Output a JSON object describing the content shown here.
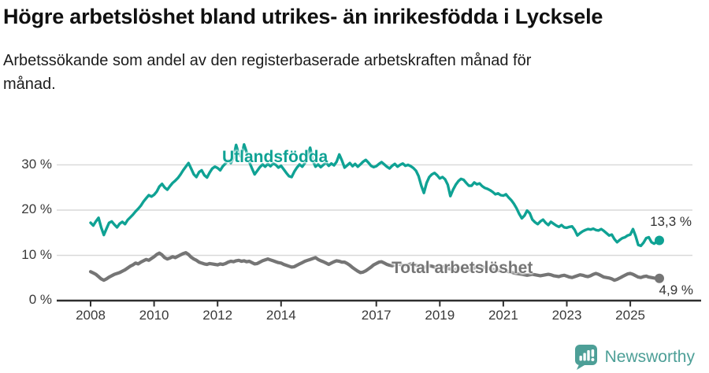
{
  "header": {
    "title": "Högre arbetslöshet bland utrikes- än inrikesfödda i Lycksele",
    "subtitle": "Arbetssökande som andel av den registerbaserade arbetskraften månad för månad."
  },
  "footer": {
    "brand": "Newsworthy"
  },
  "colors": {
    "foreign": "#0fa294",
    "total": "#757575",
    "grid": "#d9d9d9",
    "axis": "#2e2e2e",
    "tick_text": "#3a3a3a",
    "logo": "#4d9f97"
  },
  "chart_data": {
    "type": "line",
    "title": "Högre arbetslöshet bland utrikes- än inrikesfödda i Lycksele",
    "subtitle": "Arbetssökande som andel av den registerbaserade arbetskraften månad för månad.",
    "x_unit": "monthly, decimal years",
    "x_start": 2008,
    "x_step_months": 1,
    "xlim": [
      2008,
      2026
    ],
    "ylim": [
      0,
      36
    ],
    "grid": "horizontal",
    "legend_position": "inline-labels",
    "y_ticks": [
      {
        "value": 0,
        "label": "0 %"
      },
      {
        "value": 10,
        "label": "10 %"
      },
      {
        "value": 20,
        "label": "20 %"
      },
      {
        "value": 30,
        "label": "30 %"
      }
    ],
    "x_ticks": [
      {
        "value": 2008,
        "label": "2008"
      },
      {
        "value": 2010,
        "label": "2010"
      },
      {
        "value": 2012,
        "label": "2012"
      },
      {
        "value": 2014,
        "label": "2014"
      },
      {
        "value": 2017,
        "label": "2017"
      },
      {
        "value": 2019,
        "label": "2019"
      },
      {
        "value": 2021,
        "label": "2021"
      },
      {
        "value": 2023,
        "label": "2023"
      },
      {
        "value": 2025,
        "label": "2025"
      }
    ],
    "series": [
      {
        "name": "Utlandsfödda",
        "color": "#0fa294",
        "stroke_width": 3.4,
        "end_label": "13,3 %",
        "last_value": 13.3,
        "values": [
          17.2,
          16.6,
          17.5,
          18.3,
          16.2,
          14.5,
          15.9,
          17.2,
          17.5,
          16.8,
          16.2,
          17.0,
          17.4,
          16.9,
          17.8,
          18.4,
          19.0,
          19.7,
          20.3,
          21.0,
          21.9,
          22.6,
          23.3,
          23.0,
          23.4,
          24.1,
          25.2,
          25.8,
          25.0,
          24.5,
          25.3,
          26.0,
          26.5,
          27.1,
          27.9,
          28.8,
          29.6,
          30.4,
          29.2,
          27.9,
          27.3,
          28.4,
          28.8,
          27.7,
          27.2,
          28.3,
          29.2,
          29.6,
          29.3,
          28.8,
          29.7,
          30.3,
          31.0,
          30.4,
          31.6,
          34.4,
          32.4,
          31.7,
          34.5,
          32.8,
          30.6,
          29.2,
          27.9,
          28.7,
          29.5,
          30.1,
          29.6,
          30.2,
          29.7,
          30.3,
          30.0,
          29.4,
          29.8,
          29.0,
          28.2,
          27.5,
          27.3,
          28.5,
          29.4,
          30.1,
          29.6,
          30.4,
          32.1,
          33.8,
          30.9,
          29.6,
          30.1,
          29.5,
          30.0,
          30.5,
          29.8,
          30.3,
          29.9,
          30.7,
          32.3,
          31.0,
          29.4,
          29.9,
          30.4,
          29.7,
          30.2,
          29.6,
          30.1,
          30.7,
          31.1,
          30.5,
          29.8,
          29.5,
          29.7,
          30.2,
          30.6,
          30.1,
          29.6,
          29.2,
          29.8,
          30.2,
          29.6,
          30.0,
          30.3,
          29.8,
          30.0,
          29.7,
          29.3,
          28.7,
          27.5,
          25.4,
          23.8,
          26.0,
          27.3,
          27.9,
          28.2,
          27.7,
          27.0,
          27.3,
          26.8,
          25.6,
          23.1,
          24.5,
          25.6,
          26.4,
          26.9,
          26.7,
          26.0,
          25.4,
          25.4,
          26.1,
          25.7,
          25.9,
          25.3,
          24.9,
          24.7,
          24.4,
          24.0,
          23.5,
          23.7,
          23.3,
          23.2,
          23.5,
          22.8,
          22.2,
          21.4,
          20.4,
          19.2,
          18.2,
          18.8,
          19.9,
          19.3,
          17.9,
          17.3,
          16.9,
          17.5,
          17.9,
          17.2,
          16.7,
          17.4,
          17.0,
          16.6,
          16.3,
          16.7,
          16.2,
          16.1,
          16.3,
          16.4,
          15.6,
          14.4,
          14.9,
          15.3,
          15.6,
          15.8,
          15.7,
          15.9,
          15.6,
          15.5,
          15.8,
          15.4,
          14.9,
          14.4,
          14.6,
          13.6,
          12.9,
          13.4,
          13.8,
          14.0,
          14.4,
          14.6,
          15.8,
          14.3,
          12.3,
          12.1,
          12.8,
          13.8,
          14.0,
          12.9,
          12.6,
          13.0,
          13.3
        ]
      },
      {
        "name": "Total arbetslöshet",
        "color": "#757575",
        "stroke_width": 4.2,
        "end_label": "4,9 %",
        "last_value": 4.9,
        "values": [
          6.4,
          6.1,
          5.8,
          5.3,
          4.8,
          4.5,
          4.8,
          5.2,
          5.5,
          5.8,
          6.0,
          6.2,
          6.5,
          6.8,
          7.2,
          7.6,
          7.9,
          8.3,
          8.1,
          8.5,
          8.8,
          9.1,
          8.9,
          9.3,
          9.7,
          10.2,
          10.5,
          10.1,
          9.5,
          9.2,
          9.4,
          9.7,
          9.5,
          9.8,
          10.1,
          10.4,
          10.6,
          10.2,
          9.6,
          9.2,
          8.9,
          8.5,
          8.3,
          8.1,
          8.0,
          8.2,
          8.1,
          8.0,
          7.9,
          8.1,
          8.0,
          8.2,
          8.5,
          8.7,
          8.6,
          8.8,
          8.9,
          8.7,
          8.8,
          8.6,
          8.7,
          8.4,
          8.1,
          8.2,
          8.5,
          8.8,
          9.0,
          9.2,
          9.0,
          8.8,
          8.6,
          8.4,
          8.3,
          8.0,
          7.8,
          7.6,
          7.4,
          7.5,
          7.8,
          8.1,
          8.4,
          8.7,
          8.9,
          9.1,
          9.3,
          9.5,
          9.1,
          8.8,
          8.6,
          8.3,
          8.0,
          8.3,
          8.6,
          8.8,
          8.7,
          8.5,
          8.5,
          8.2,
          7.8,
          7.3,
          6.9,
          6.5,
          6.2,
          6.3,
          6.6,
          7.0,
          7.4,
          7.9,
          8.2,
          8.5,
          8.6,
          8.3,
          8.0,
          7.8,
          7.7,
          7.9,
          8.1,
          8.0,
          7.8,
          7.7,
          7.9,
          8.1,
          8.0,
          7.8,
          7.6,
          7.4,
          7.3,
          7.5,
          7.7,
          7.6,
          7.4,
          7.2,
          7.4,
          7.5,
          7.3,
          7.1,
          7.0,
          6.8,
          6.9,
          7.1,
          7.2,
          7.0,
          6.9,
          6.8,
          7.0,
          7.2,
          7.4,
          7.6,
          7.5,
          7.3,
          7.2,
          7.0,
          6.9,
          6.8,
          6.7,
          6.6,
          6.7,
          6.6,
          6.4,
          6.3,
          6.1,
          6.0,
          5.9,
          5.8,
          5.7,
          5.6,
          5.7,
          5.8,
          5.7,
          5.6,
          5.5,
          5.6,
          5.7,
          5.8,
          5.7,
          5.5,
          5.4,
          5.3,
          5.5,
          5.6,
          5.4,
          5.2,
          5.1,
          5.3,
          5.5,
          5.7,
          5.6,
          5.4,
          5.3,
          5.5,
          5.8,
          6.0,
          5.8,
          5.5,
          5.2,
          5.1,
          5.0,
          4.8,
          4.5,
          4.7,
          5.0,
          5.3,
          5.6,
          5.9,
          6.0,
          5.8,
          5.5,
          5.2,
          5.1,
          5.3,
          5.4,
          5.2,
          5.1,
          5.0,
          4.9,
          4.9
        ]
      }
    ]
  }
}
